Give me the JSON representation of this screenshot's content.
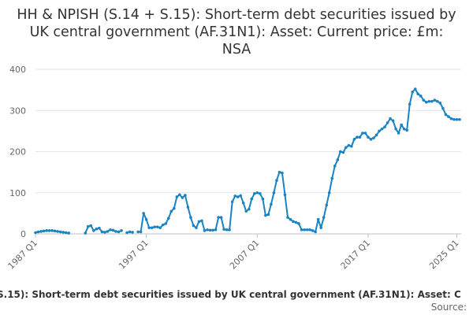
{
  "chart_data": {
    "type": "line",
    "title": "HH & NPISH (S.14 + S.15): Short-term debt securities issued by UK central government (AF.31N1): Asset: Current price: £m: NSA",
    "xlabel": "",
    "ylabel": "",
    "ylim": [
      0,
      400
    ],
    "yticks": [
      "0",
      "100",
      "200",
      "300",
      "400"
    ],
    "xticks": [
      "1987 Q1",
      "1997 Q1",
      "2007 Q1",
      "2017 Q1",
      "2025 Q1"
    ],
    "grid": true,
    "legend_text": "S.15): Short-term debt securities issued by UK central government (AF.31N1): Asset: C",
    "source_text": "Source:",
    "line_color": "#1a83c4",
    "x_start": "1987 Q1",
    "series": [
      {
        "values": [
          3,
          5,
          6,
          7,
          8,
          8,
          8,
          7,
          6,
          5,
          4,
          3,
          2,
          null,
          null,
          null,
          null,
          null,
          2,
          18,
          20,
          8,
          12,
          14,
          5,
          4,
          6,
          10,
          9,
          6,
          5,
          8,
          null,
          3,
          5,
          4,
          null,
          5,
          5,
          50,
          35,
          15,
          15,
          17,
          17,
          15,
          22,
          25,
          38,
          55,
          62,
          90,
          95,
          88,
          94,
          65,
          40,
          20,
          15,
          30,
          32,
          8,
          10,
          9,
          9,
          10,
          40,
          40,
          11,
          10,
          10,
          78,
          92,
          90,
          93,
          75,
          55,
          60,
          85,
          98,
          100,
          98,
          85,
          45,
          47,
          72,
          100,
          130,
          150,
          148,
          95,
          40,
          35,
          30,
          28,
          25,
          10,
          10,
          10,
          10,
          8,
          5,
          35,
          15,
          40,
          70,
          100,
          135,
          165,
          180,
          200,
          198,
          210,
          215,
          213,
          230,
          235,
          235,
          245,
          245,
          235,
          230,
          233,
          240,
          250,
          255,
          260,
          270,
          280,
          275,
          255,
          245,
          265,
          255,
          252,
          315,
          345,
          352,
          340,
          335,
          325,
          320,
          322,
          322,
          325,
          322,
          318,
          305,
          290,
          285,
          280,
          278,
          278,
          278
        ]
      }
    ]
  }
}
